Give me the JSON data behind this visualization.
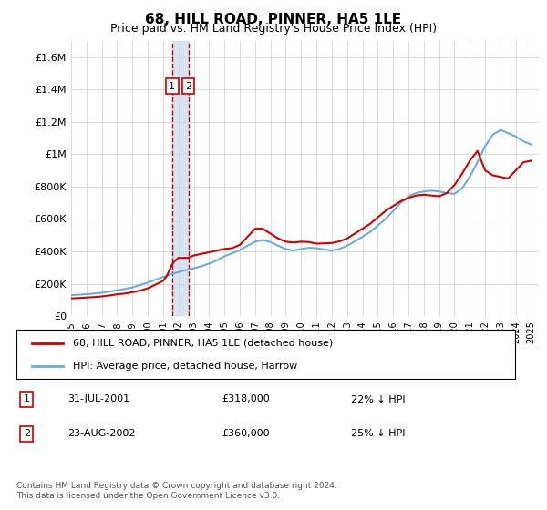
{
  "title": "68, HILL ROAD, PINNER, HA5 1LE",
  "subtitle": "Price paid vs. HM Land Registry's House Price Index (HPI)",
  "ylabel": "",
  "ylim": [
    0,
    1700000
  ],
  "yticks": [
    0,
    200000,
    400000,
    600000,
    800000,
    1000000,
    1200000,
    1400000,
    1600000
  ],
  "ytick_labels": [
    "£0",
    "£200K",
    "£400K",
    "£600K",
    "£800K",
    "£1M",
    "£1.2M",
    "£1.4M",
    "£1.6M"
  ],
  "xlim_start": 1995.0,
  "xlim_end": 2025.5,
  "hpi_color": "#6baed6",
  "property_color": "#cc0000",
  "transaction_color": "#cc0000",
  "shade_color": "#c6dbef",
  "grid_color": "#cccccc",
  "legend_label_property": "68, HILL ROAD, PINNER, HA5 1LE (detached house)",
  "legend_label_hpi": "HPI: Average price, detached house, Harrow",
  "transactions": [
    {
      "label": "1",
      "date": "31-JUL-2001",
      "price": "£318,000",
      "pct": "22% ↓ HPI",
      "year": 2001.58
    },
    {
      "label": "2",
      "date": "23-AUG-2002",
      "price": "£360,000",
      "pct": "25% ↓ HPI",
      "year": 2002.64
    }
  ],
  "footnote": "Contains HM Land Registry data © Crown copyright and database right 2024.\nThis data is licensed under the Open Government Licence v3.0.",
  "hpi_years": [
    1995,
    1995.5,
    1996,
    1996.5,
    1997,
    1997.5,
    1998,
    1998.5,
    1999,
    1999.5,
    2000,
    2000.5,
    2001,
    2001.5,
    2002,
    2002.5,
    2003,
    2003.5,
    2004,
    2004.5,
    2005,
    2005.5,
    2006,
    2006.5,
    2007,
    2007.5,
    2008,
    2008.5,
    2009,
    2009.5,
    2010,
    2010.5,
    2011,
    2011.5,
    2012,
    2012.5,
    2013,
    2013.5,
    2014,
    2014.5,
    2015,
    2015.5,
    2016,
    2016.5,
    2017,
    2017.5,
    2018,
    2018.5,
    2019,
    2019.5,
    2020,
    2020.5,
    2021,
    2021.5,
    2022,
    2022.5,
    2023,
    2023.5,
    2024,
    2024.5,
    2025
  ],
  "hpi_values": [
    130000,
    133000,
    136000,
    140000,
    145000,
    152000,
    160000,
    168000,
    178000,
    192000,
    208000,
    225000,
    242000,
    258000,
    272000,
    285000,
    296000,
    308000,
    325000,
    345000,
    370000,
    388000,
    408000,
    435000,
    460000,
    470000,
    458000,
    435000,
    415000,
    405000,
    415000,
    422000,
    420000,
    412000,
    405000,
    415000,
    435000,
    462000,
    490000,
    520000,
    560000,
    600000,
    650000,
    700000,
    740000,
    760000,
    770000,
    775000,
    770000,
    760000,
    755000,
    790000,
    860000,
    950000,
    1050000,
    1120000,
    1150000,
    1130000,
    1110000,
    1080000,
    1060000
  ],
  "property_years": [
    1995,
    1995.5,
    1996,
    1996.5,
    1997,
    1997.5,
    1998,
    1998.5,
    1999,
    1999.5,
    2000,
    2000.5,
    2001,
    2001.25,
    2001.58,
    2001.75,
    2002,
    2002.64,
    2003,
    2003.5,
    2004,
    2004.5,
    2005,
    2005.5,
    2006,
    2006.5,
    2007,
    2007.5,
    2008,
    2008.5,
    2009,
    2009.5,
    2010,
    2010.5,
    2011,
    2011.5,
    2012,
    2012.5,
    2013,
    2013.5,
    2014,
    2014.5,
    2015,
    2015.5,
    2016,
    2016.5,
    2017,
    2017.5,
    2018,
    2018.5,
    2019,
    2019.5,
    2020,
    2020.5,
    2021,
    2021.5,
    2022,
    2022.5,
    2023,
    2023.5,
    2024,
    2024.5,
    2025
  ],
  "property_values": [
    110000,
    112000,
    115000,
    118000,
    122000,
    128000,
    135000,
    140000,
    148000,
    158000,
    172000,
    195000,
    218000,
    250000,
    318000,
    340000,
    360000,
    360000,
    375000,
    385000,
    395000,
    405000,
    415000,
    420000,
    440000,
    490000,
    540000,
    540000,
    510000,
    480000,
    460000,
    455000,
    460000,
    458000,
    448000,
    450000,
    452000,
    462000,
    480000,
    510000,
    540000,
    570000,
    610000,
    650000,
    680000,
    710000,
    730000,
    745000,
    750000,
    745000,
    740000,
    760000,
    810000,
    880000,
    960000,
    1020000,
    900000,
    870000,
    860000,
    850000,
    900000,
    950000,
    960000
  ]
}
